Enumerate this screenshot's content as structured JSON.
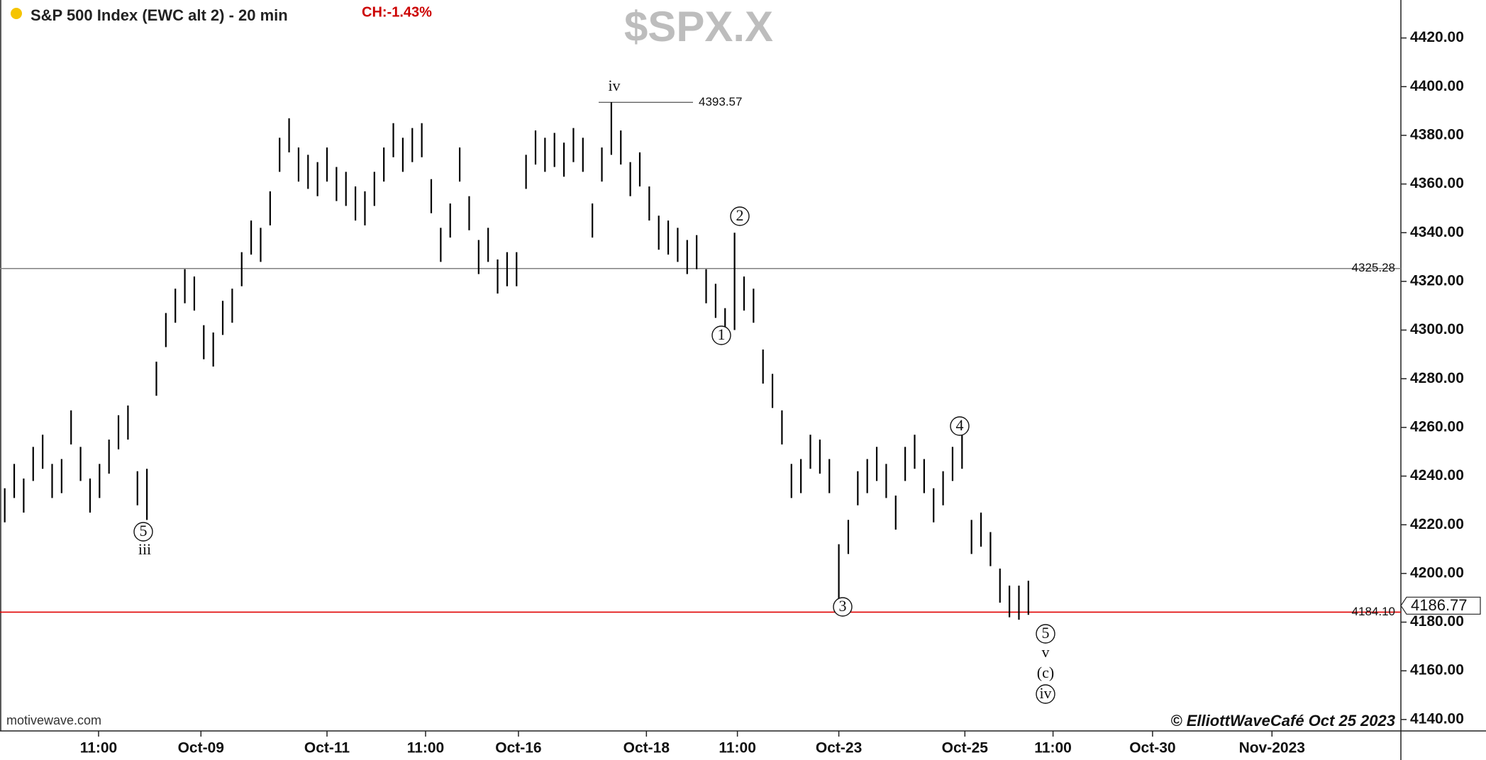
{
  "chart_data": {
    "type": "ohlc",
    "title": "S&P 500 Index (EWC alt 2) - 20 min",
    "change": "CH:-1.43%",
    "symbol": "$SPX.X",
    "source": "motivewave.com",
    "copyright": "© ElliottWaveCafé Oct 25 2023",
    "color": "#000000",
    "xlim": [
      -0.5,
      147.3
    ],
    "xticks": [
      {
        "value": 9.9,
        "label": "11:00"
      },
      {
        "value": 20.7,
        "label": "Oct-09"
      },
      {
        "value": 34,
        "label": "Oct-11"
      },
      {
        "value": 44.4,
        "label": "11:00"
      },
      {
        "value": 54.2,
        "label": "Oct-16"
      },
      {
        "value": 67.7,
        "label": "Oct-18"
      },
      {
        "value": 77.3,
        "label": "11:00"
      },
      {
        "value": 88,
        "label": "Oct-23"
      },
      {
        "value": 101.3,
        "label": "Oct-25"
      },
      {
        "value": 110.6,
        "label": "11:00"
      },
      {
        "value": 121.1,
        "label": "Oct-30"
      },
      {
        "value": 133.7,
        "label": "Nov-2023"
      }
    ],
    "ylim": [
      4135.3,
      4435.6
    ],
    "yticks": [
      {
        "value": 4140,
        "label": "4140.00"
      },
      {
        "value": 4160,
        "label": "4160.00"
      },
      {
        "value": 4180,
        "label": "4180.00"
      },
      {
        "value": 4200,
        "label": "4200.00"
      },
      {
        "value": 4220,
        "label": "4220.00"
      },
      {
        "value": 4240,
        "label": "4240.00"
      },
      {
        "value": 4260,
        "label": "4260.00"
      },
      {
        "value": 4280,
        "label": "4280.00"
      },
      {
        "value": 4300,
        "label": "4300.00"
      },
      {
        "value": 4320,
        "label": "4320.00"
      },
      {
        "value": 4340,
        "label": "4340.00"
      },
      {
        "value": 4360,
        "label": "4360.00"
      },
      {
        "value": 4380,
        "label": "4380.00"
      },
      {
        "value": 4400,
        "label": "4400.00"
      },
      {
        "value": 4420,
        "label": "4420.00"
      }
    ],
    "high": [
      4235,
      4245,
      4239,
      4252,
      4257,
      4245,
      4247,
      4267,
      4252,
      4239,
      4245,
      4255,
      4265,
      4269,
      4242,
      4243,
      4287,
      4307,
      4317,
      4325,
      4322,
      4302,
      4299,
      4312,
      4317,
      4332,
      4345,
      4342,
      4357,
      4379,
      4387,
      4375,
      4372,
      4369,
      4375,
      4367,
      4365,
      4359,
      4357,
      4365,
      4375,
      4385,
      4379,
      4383,
      4385,
      4362,
      4342,
      4352,
      4375,
      4355,
      4337,
      4342,
      4329,
      4332,
      4332,
      4372,
      4382,
      4379,
      4381,
      4377,
      4383,
      4379,
      4352,
      4375,
      4393.57,
      4382,
      4369,
      4373,
      4359,
      4347,
      4345,
      4342,
      4337,
      4339,
      4325,
      4319,
      4309,
      4340,
      4322,
      4317,
      4292,
      4282,
      4267,
      4245,
      4247,
      4257,
      4255,
      4247,
      4212,
      4222,
      4242,
      4247,
      4252,
      4245,
      4232,
      4252,
      4257,
      4247,
      4235,
      4242,
      4252,
      4257,
      4222,
      4225,
      4217,
      4202,
      4195,
      4195,
      4197
    ],
    "low": [
      4221,
      4231,
      4225,
      4238,
      4243,
      4231,
      4233,
      4253,
      4238,
      4225,
      4231,
      4241,
      4251,
      4255,
      4228,
      4222,
      4273,
      4293,
      4303,
      4311,
      4308,
      4288,
      4285,
      4298,
      4303,
      4318,
      4331,
      4328,
      4343,
      4365,
      4373,
      4361,
      4358,
      4355,
      4361,
      4353,
      4351,
      4345,
      4343,
      4351,
      4361,
      4371,
      4365,
      4369,
      4371,
      4348,
      4328,
      4338,
      4361,
      4341,
      4323,
      4328,
      4315,
      4318,
      4318,
      4358,
      4368,
      4365,
      4367,
      4363,
      4369,
      4365,
      4338,
      4361,
      4372,
      4368,
      4355,
      4359,
      4345,
      4333,
      4331,
      4328,
      4323,
      4325,
      4311,
      4305,
      4295,
      4300,
      4308,
      4303,
      4278,
      4268,
      4253,
      4231,
      4233,
      4243,
      4241,
      4233,
      4188,
      4208,
      4228,
      4233,
      4238,
      4231,
      4218,
      4238,
      4243,
      4233,
      4221,
      4228,
      4238,
      4243,
      4208,
      4211,
      4203,
      4188,
      4182,
      4181,
      4183
    ],
    "levels": [
      {
        "value": 4325.28,
        "label": "4325.28",
        "color": "#808080"
      },
      {
        "value": 4184.1,
        "label": "4184.10",
        "color": "#e00000"
      }
    ],
    "high_marker": {
      "value": 4393.57,
      "label": "4393.57"
    },
    "last_price": {
      "value": 4186.77,
      "label": "4186.77"
    },
    "annotations": [
      {
        "text": "iv",
        "circled": false
      },
      {
        "text": "2",
        "circled": true
      },
      {
        "text": "1",
        "circled": true
      },
      {
        "text": "5",
        "circled": true
      },
      {
        "text": "iii",
        "circled": false
      },
      {
        "text": "4",
        "circled": true
      },
      {
        "text": "3",
        "circled": true
      },
      {
        "text": "5",
        "circled": true
      },
      {
        "text": "v",
        "circled": false
      },
      {
        "text": "(c)",
        "circled": false
      },
      {
        "text": "iv",
        "circled": true
      }
    ]
  }
}
